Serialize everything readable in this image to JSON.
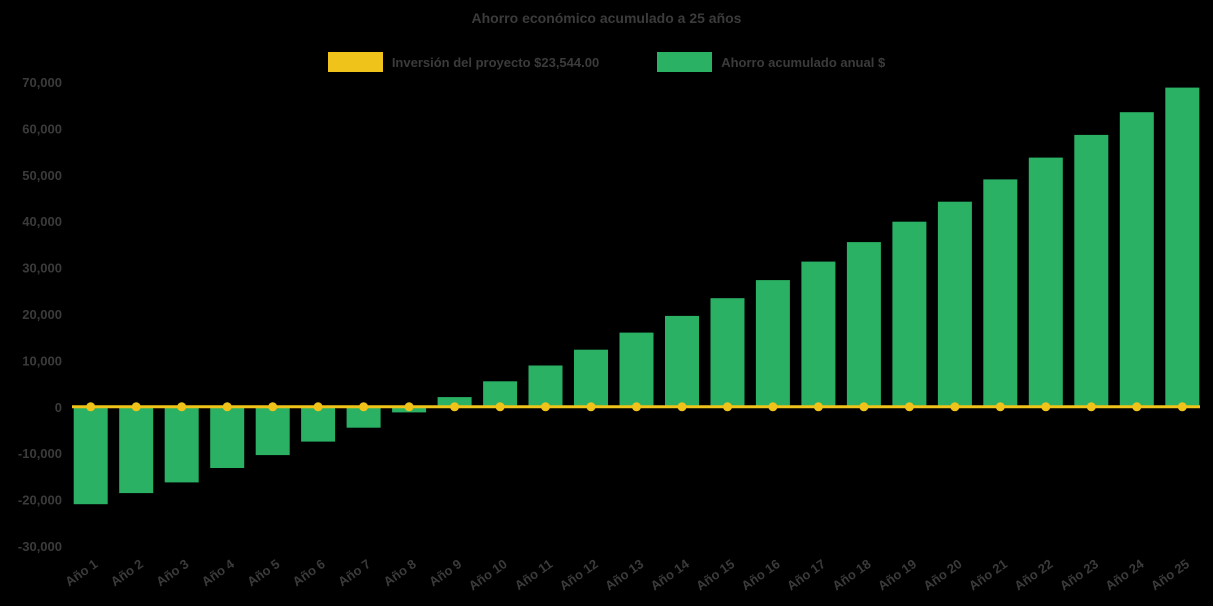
{
  "chart_data": {
    "type": "bar",
    "title": "Ahorro económico acumulado a 25 años",
    "background": "#000000",
    "text_color": "#3B3B3B",
    "grid": false,
    "legend_position": "top",
    "ylim": [
      -30000,
      70000
    ],
    "yticks": [
      {
        "value": 70000,
        "label": "70,000"
      },
      {
        "value": 60000,
        "label": "60,000"
      },
      {
        "value": 50000,
        "label": "50,000"
      },
      {
        "value": 40000,
        "label": "40,000"
      },
      {
        "value": 30000,
        "label": "30,000"
      },
      {
        "value": 20000,
        "label": "20,000"
      },
      {
        "value": 10000,
        "label": "10,000"
      },
      {
        "value": 0,
        "label": "0"
      },
      {
        "value": -10000,
        "label": "-10,000"
      },
      {
        "value": -20000,
        "label": "-20,000"
      },
      {
        "value": -30000,
        "label": "-30,000"
      }
    ],
    "categories": [
      "Año 1",
      "Año 2",
      "Año 3",
      "Año 4",
      "Año 5",
      "Año 6",
      "Año 7",
      "Año 8",
      "Año 9",
      "Año 10",
      "Año 11",
      "Año 12",
      "Año 13",
      "Año 14",
      "Año 15",
      "Año 16",
      "Año 17",
      "Año 18",
      "Año 19",
      "Año 20",
      "Año 21",
      "Año 22",
      "Año 23",
      "Año 24",
      "Año 25"
    ],
    "series": [
      {
        "name": "Inversión del proyecto $23,544.00",
        "type": "line",
        "color": "#EFC319",
        "values": [
          0,
          0,
          0,
          0,
          0,
          0,
          0,
          0,
          0,
          0,
          0,
          0,
          0,
          0,
          0,
          0,
          0,
          0,
          0,
          0,
          0,
          0,
          0,
          0,
          0
        ]
      },
      {
        "name": "Ahorro acumulado anual $",
        "type": "bar",
        "color": "#2AB163",
        "values": [
          -21000,
          -18600,
          -16300,
          -13200,
          -10400,
          -7500,
          -4500,
          -1200,
          2100,
          5500,
          8900,
          12300,
          16000,
          19600,
          23400,
          27300,
          31300,
          35500,
          39900,
          44200,
          49000,
          53700,
          58600,
          63500,
          68800
        ]
      }
    ]
  }
}
